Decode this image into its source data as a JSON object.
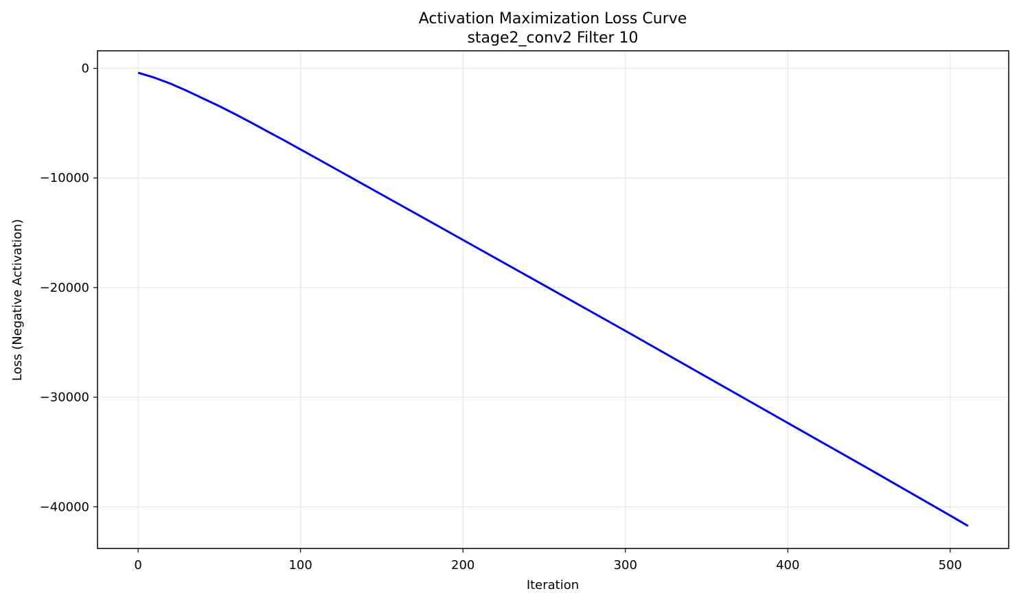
{
  "chart_data": {
    "type": "line",
    "title": "Activation Maximization Loss Curve",
    "subtitle": "stage2_conv2 Filter 10",
    "xlabel": "Iteration",
    "ylabel": "Loss (Negative Activation)",
    "xlim": [
      -25,
      536
    ],
    "ylim": [
      -43800,
      1600
    ],
    "xticks": [
      0,
      100,
      200,
      300,
      400,
      500
    ],
    "yticks": [
      0,
      -10000,
      -20000,
      -30000,
      -40000
    ],
    "ytick_labels": [
      "0",
      "−10000",
      "−20000",
      "−30000",
      "−40000"
    ],
    "grid": true,
    "series": [
      {
        "color": "#0000ff",
        "x": [
          0,
          10,
          20,
          30,
          40,
          50,
          60,
          70,
          80,
          90,
          100,
          125,
          150,
          175,
          200,
          250,
          300,
          350,
          400,
          450,
          500,
          511
        ],
        "y": [
          -400,
          -850,
          -1400,
          -2050,
          -2750,
          -3450,
          -4200,
          -4980,
          -5780,
          -6580,
          -7400,
          -9450,
          -11520,
          -13580,
          -15650,
          -19800,
          -23950,
          -28150,
          -32350,
          -36550,
          -40800,
          -41750
        ]
      }
    ]
  }
}
